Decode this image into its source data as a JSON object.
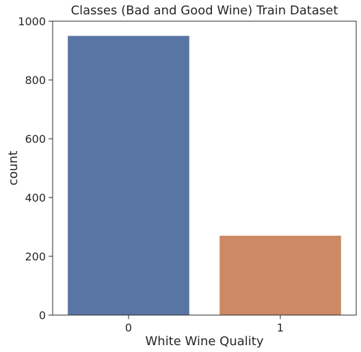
{
  "chart_data": {
    "type": "bar",
    "title": "Classes (Bad and Good Wine) Train Dataset",
    "xlabel": "White Wine Quality",
    "ylabel": "count",
    "categories": [
      "0",
      "1"
    ],
    "values": [
      950,
      270
    ],
    "colors": [
      "#5975a4",
      "#cc8963"
    ],
    "ylim": [
      0,
      1000
    ],
    "yticks": [
      0,
      200,
      400,
      600,
      800,
      1000
    ],
    "grid": false,
    "legend": "none"
  }
}
